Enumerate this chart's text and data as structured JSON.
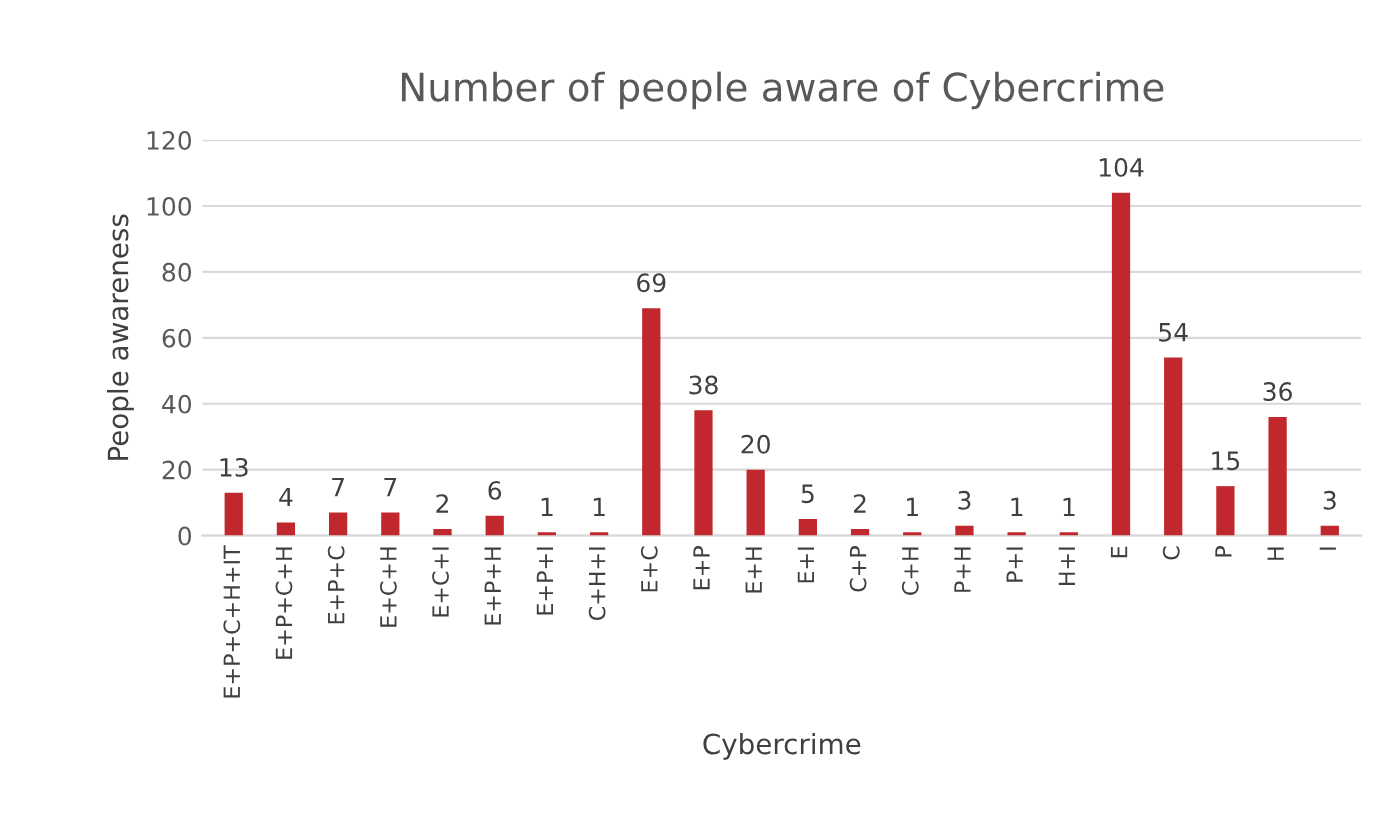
{
  "chart_data": {
    "type": "bar",
    "title": "Number of people aware of Cybercrime",
    "xlabel": "Cybercrime",
    "ylabel": "People awareness",
    "categories": [
      "E+P+C+H+IT",
      "E+P+C+H",
      "E+P+C",
      "E+C+H",
      "E+C+I",
      "E+P+H",
      "E+P+I",
      "C+H+I",
      "E+C",
      "E+P",
      "E+H",
      "E+I",
      "C+P",
      "C+H",
      "P+H",
      "P+I",
      "H+I",
      "E",
      "C",
      "P",
      "H",
      "I"
    ],
    "values": [
      13,
      4,
      7,
      7,
      2,
      6,
      1,
      1,
      69,
      38,
      20,
      5,
      2,
      1,
      3,
      1,
      1,
      104,
      54,
      15,
      36,
      3
    ],
    "color": "#c0282d",
    "ylim": [
      0,
      120
    ],
    "yticks": [
      0,
      20,
      40,
      60,
      80,
      100,
      120
    ],
    "grid": "y",
    "data_labels": true,
    "legend": false
  }
}
